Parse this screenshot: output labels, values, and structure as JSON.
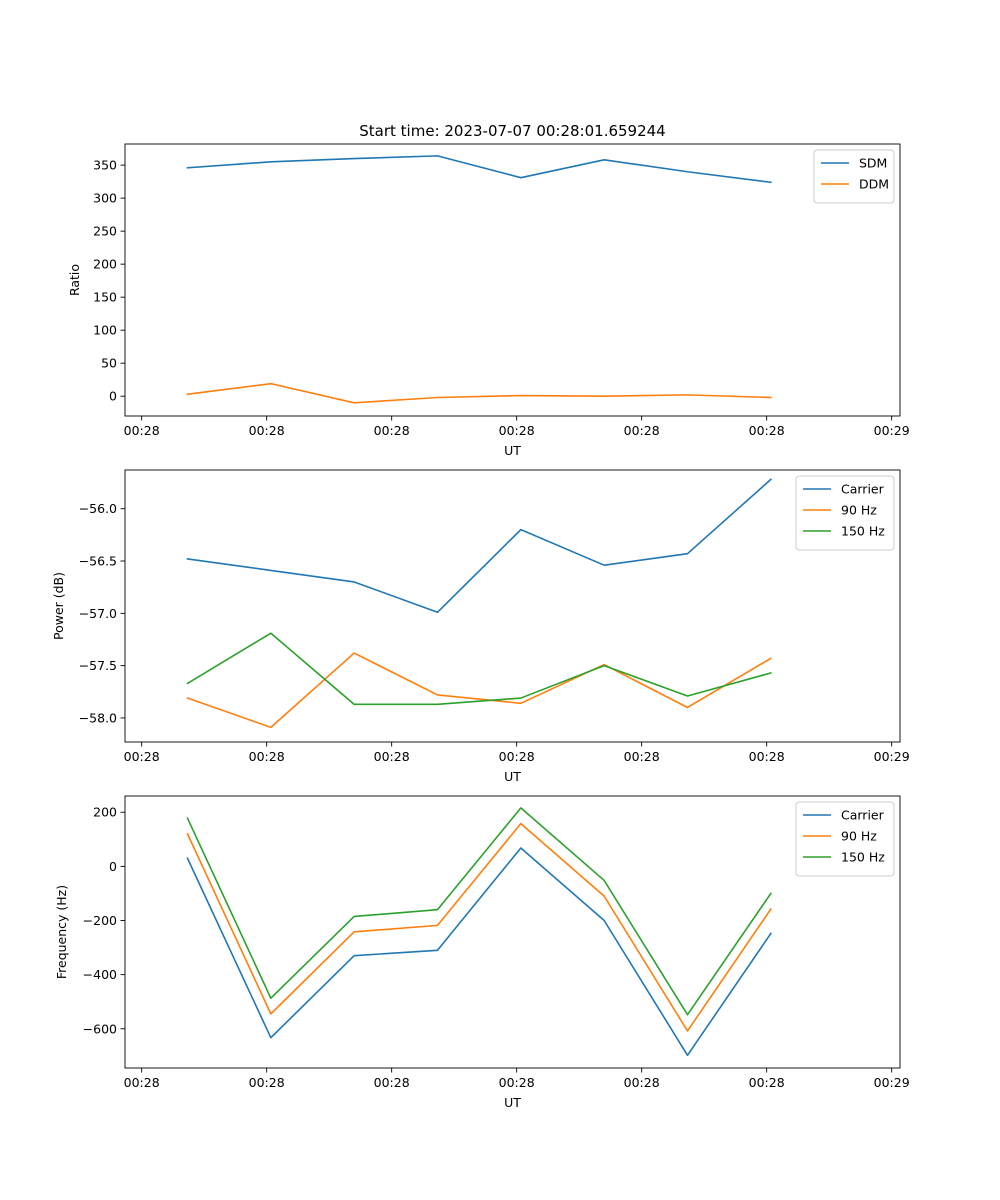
{
  "figure_title": "Start time: 2023-07-07 00:28:01.659244",
  "colors": {
    "c0": "#1f77b4",
    "c1": "#ff7f0e",
    "c2": "#2ca02c"
  },
  "chart_data": [
    {
      "type": "line",
      "title": "Start time: 2023-07-07 00:28:01.659244",
      "xlabel": "UT",
      "ylabel": "Ratio",
      "xlim": [
        0,
        9.3
      ],
      "ylim": [
        -30,
        382
      ],
      "x": [
        0.75,
        1.75,
        2.75,
        3.75,
        4.75,
        5.75,
        6.75,
        7.75
      ],
      "xticks": [
        {
          "v": 0.2,
          "label": "00:28"
        },
        {
          "v": 1.7,
          "label": "00:28"
        },
        {
          "v": 3.2,
          "label": "00:28"
        },
        {
          "v": 4.7,
          "label": "00:28"
        },
        {
          "v": 6.2,
          "label": "00:28"
        },
        {
          "v": 7.7,
          "label": "00:28"
        },
        {
          "v": 9.2,
          "label": "00:29"
        }
      ],
      "yticks": [
        {
          "v": 0,
          "label": "0"
        },
        {
          "v": 50,
          "label": "50"
        },
        {
          "v": 100,
          "label": "100"
        },
        {
          "v": 150,
          "label": "150"
        },
        {
          "v": 200,
          "label": "200"
        },
        {
          "v": 250,
          "label": "250"
        },
        {
          "v": 300,
          "label": "300"
        },
        {
          "v": 350,
          "label": "350"
        }
      ],
      "series": [
        {
          "name": "SDM",
          "color": "#1f77b4",
          "values": [
            346,
            355,
            360,
            364,
            331,
            358,
            340,
            324
          ]
        },
        {
          "name": "DDM",
          "color": "#ff7f0e",
          "values": [
            3,
            19,
            -10,
            -2,
            1,
            0,
            2,
            -2
          ]
        }
      ],
      "legend": "upper right"
    },
    {
      "type": "line",
      "xlabel": "UT",
      "ylabel": "Power (dB)",
      "xlim": [
        0,
        9.3
      ],
      "ylim": [
        -58.23,
        -55.63
      ],
      "x": [
        0.75,
        1.75,
        2.75,
        3.75,
        4.75,
        5.75,
        6.75,
        7.75
      ],
      "xticks": [
        {
          "v": 0.2,
          "label": "00:28"
        },
        {
          "v": 1.7,
          "label": "00:28"
        },
        {
          "v": 3.2,
          "label": "00:28"
        },
        {
          "v": 4.7,
          "label": "00:28"
        },
        {
          "v": 6.2,
          "label": "00:28"
        },
        {
          "v": 7.7,
          "label": "00:28"
        },
        {
          "v": 9.2,
          "label": "00:29"
        }
      ],
      "yticks": [
        {
          "v": -58.0,
          "label": "−58.0"
        },
        {
          "v": -57.5,
          "label": "−57.5"
        },
        {
          "v": -57.0,
          "label": "−57.0"
        },
        {
          "v": -56.5,
          "label": "−56.5"
        },
        {
          "v": -56.0,
          "label": "−56.0"
        }
      ],
      "series": [
        {
          "name": "Carrier",
          "color": "#1f77b4",
          "values": [
            -56.48,
            -56.59,
            -56.7,
            -56.99,
            -56.2,
            -56.54,
            -56.43,
            -55.72
          ]
        },
        {
          "name": "90 Hz",
          "color": "#ff7f0e",
          "values": [
            -57.81,
            -58.09,
            -57.38,
            -57.78,
            -57.86,
            -57.49,
            -57.9,
            -57.43
          ]
        },
        {
          "name": "150 Hz",
          "color": "#2ca02c",
          "values": [
            -57.67,
            -57.19,
            -57.87,
            -57.87,
            -57.81,
            -57.5,
            -57.79,
            -57.57
          ]
        }
      ],
      "legend": "upper right"
    },
    {
      "type": "line",
      "xlabel": "UT",
      "ylabel": "Frequency (Hz)",
      "xlim": [
        0,
        9.3
      ],
      "ylim": [
        -745,
        260
      ],
      "x": [
        0.75,
        1.75,
        2.75,
        3.75,
        4.75,
        5.75,
        6.75,
        7.75
      ],
      "xticks": [
        {
          "v": 0.2,
          "label": "00:28"
        },
        {
          "v": 1.7,
          "label": "00:28"
        },
        {
          "v": 3.2,
          "label": "00:28"
        },
        {
          "v": 4.7,
          "label": "00:28"
        },
        {
          "v": 6.2,
          "label": "00:28"
        },
        {
          "v": 7.7,
          "label": "00:28"
        },
        {
          "v": 9.2,
          "label": "00:29"
        }
      ],
      "yticks": [
        {
          "v": -600,
          "label": "−600"
        },
        {
          "v": -400,
          "label": "−400"
        },
        {
          "v": -200,
          "label": "−200"
        },
        {
          "v": 0,
          "label": "0"
        },
        {
          "v": 200,
          "label": "200"
        }
      ],
      "series": [
        {
          "name": "Carrier",
          "color": "#1f77b4",
          "values": [
            30,
            -633,
            -330,
            -310,
            68,
            -200,
            -698,
            -248
          ]
        },
        {
          "name": "90 Hz",
          "color": "#ff7f0e",
          "values": [
            120,
            -545,
            -242,
            -218,
            158,
            -110,
            -608,
            -158
          ]
        },
        {
          "name": "150 Hz",
          "color": "#2ca02c",
          "values": [
            178,
            -487,
            -185,
            -160,
            216,
            -52,
            -548,
            -100
          ]
        }
      ],
      "legend": "upper right"
    }
  ]
}
